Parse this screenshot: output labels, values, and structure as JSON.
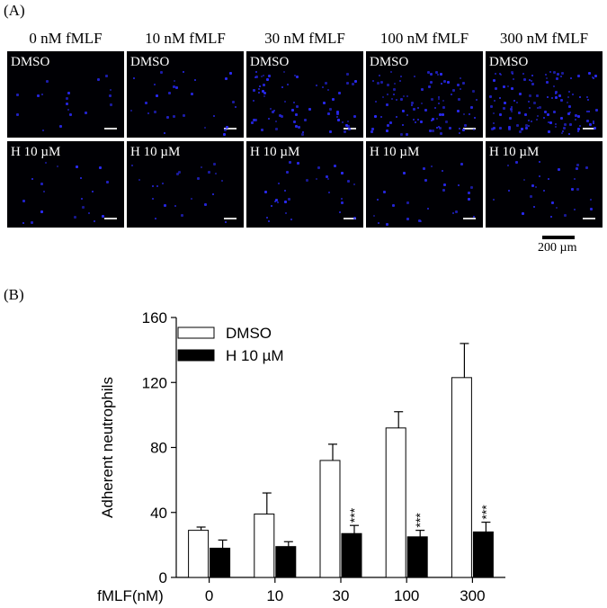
{
  "panel_a": {
    "label": "(A)",
    "columns": [
      "0 nM fMLF",
      "10 nM fMLF",
      "30 nM fMLF",
      "100 nM fMLF",
      "300 nM fMLF"
    ],
    "rows": [
      "DMSO",
      "H 10 µM"
    ],
    "scale_bar_label": "200 µm",
    "image_colors": {
      "background": "#000004",
      "nuclei": "#2b2bff"
    }
  },
  "panel_b": {
    "label": "(B)"
  },
  "chart_data": {
    "type": "bar",
    "xlabel": "fMLF(nM)",
    "ylabel": "Adherent neutrophils",
    "categories": [
      "0",
      "10",
      "30",
      "100",
      "300"
    ],
    "ylim": [
      0,
      160
    ],
    "yticks": [
      0,
      40,
      80,
      120,
      160
    ],
    "legend_position": "top-left",
    "series": [
      {
        "name": "DMSO",
        "fill": "#ffffff",
        "values": [
          29,
          39,
          72,
          92,
          123
        ],
        "errors": [
          2,
          13,
          10,
          10,
          21
        ],
        "annotations": [
          "",
          "",
          "",
          "",
          ""
        ]
      },
      {
        "name": "H 10 µM",
        "fill": "#000000",
        "values": [
          18,
          19,
          27,
          25,
          28
        ],
        "errors": [
          5,
          3,
          5,
          4,
          6
        ],
        "annotations": [
          "",
          "",
          "***",
          "***",
          "***"
        ]
      }
    ]
  }
}
